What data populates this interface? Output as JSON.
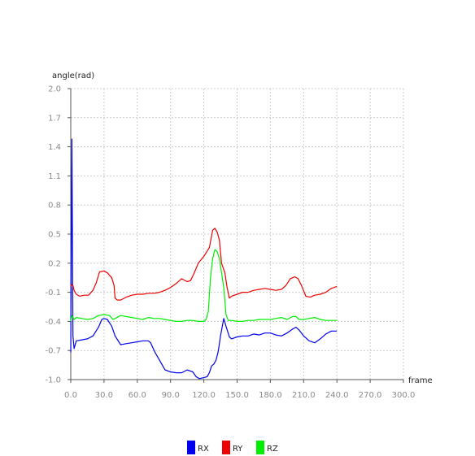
{
  "chart_data": {
    "type": "line",
    "xlabel": "frame",
    "ylabel": "angle(rad)",
    "xlim": [
      0,
      300
    ],
    "ylim": [
      -1.0,
      2.0
    ],
    "xticks": [
      0,
      30,
      60,
      90,
      120,
      150,
      180,
      210,
      240,
      270,
      300
    ],
    "yticks": [
      -1.0,
      -0.7,
      -0.4,
      -0.1,
      0.2,
      0.5,
      0.8,
      1.1,
      1.4,
      1.7,
      2.0
    ],
    "x_tick_labels": [
      "0.0",
      "30.0",
      "60.0",
      "90.0",
      "120.0",
      "150.0",
      "180.0",
      "210.0",
      "240.0",
      "270.0",
      "300.0"
    ],
    "y_tick_labels": [
      "-1.0",
      "-0.7",
      "-0.4",
      "-0.1",
      "0.2",
      "0.5",
      "0.8",
      "1.1",
      "1.4",
      "1.7",
      "2.0"
    ],
    "grid": true,
    "legend_position": "bottom",
    "series": [
      {
        "name": "RX",
        "color": "#0000ee",
        "points": [
          [
            0,
            -0.72
          ],
          [
            1,
            1.48
          ],
          [
            2,
            -0.55
          ],
          [
            3,
            -0.68
          ],
          [
            5,
            -0.6
          ],
          [
            10,
            -0.59
          ],
          [
            15,
            -0.58
          ],
          [
            20,
            -0.55
          ],
          [
            25,
            -0.46
          ],
          [
            28,
            -0.38
          ],
          [
            30,
            -0.37
          ],
          [
            33,
            -0.38
          ],
          [
            37,
            -0.45
          ],
          [
            40,
            -0.55
          ],
          [
            45,
            -0.64
          ],
          [
            50,
            -0.63
          ],
          [
            55,
            -0.62
          ],
          [
            60,
            -0.61
          ],
          [
            65,
            -0.6
          ],
          [
            70,
            -0.6
          ],
          [
            72,
            -0.62
          ],
          [
            76,
            -0.72
          ],
          [
            80,
            -0.8
          ],
          [
            85,
            -0.9
          ],
          [
            90,
            -0.92
          ],
          [
            95,
            -0.93
          ],
          [
            100,
            -0.93
          ],
          [
            105,
            -0.9
          ],
          [
            110,
            -0.92
          ],
          [
            113,
            -0.97
          ],
          [
            116,
            -0.99
          ],
          [
            120,
            -0.98
          ],
          [
            123,
            -0.97
          ],
          [
            125,
            -0.93
          ],
          [
            127,
            -0.86
          ],
          [
            129,
            -0.84
          ],
          [
            131,
            -0.8
          ],
          [
            133,
            -0.71
          ],
          [
            135,
            -0.55
          ],
          [
            138,
            -0.37
          ],
          [
            140,
            -0.45
          ],
          [
            143,
            -0.56
          ],
          [
            145,
            -0.58
          ],
          [
            150,
            -0.56
          ],
          [
            155,
            -0.55
          ],
          [
            160,
            -0.55
          ],
          [
            165,
            -0.53
          ],
          [
            170,
            -0.54
          ],
          [
            175,
            -0.52
          ],
          [
            180,
            -0.52
          ],
          [
            185,
            -0.54
          ],
          [
            190,
            -0.55
          ],
          [
            195,
            -0.52
          ],
          [
            200,
            -0.48
          ],
          [
            203,
            -0.46
          ],
          [
            206,
            -0.49
          ],
          [
            210,
            -0.55
          ],
          [
            215,
            -0.6
          ],
          [
            220,
            -0.62
          ],
          [
            225,
            -0.58
          ],
          [
            230,
            -0.53
          ],
          [
            235,
            -0.5
          ],
          [
            240,
            -0.5
          ]
        ]
      },
      {
        "name": "RY",
        "color": "#ee0000",
        "points": [
          [
            0,
            -0.04
          ],
          [
            1,
            -0.02
          ],
          [
            2,
            -0.03
          ],
          [
            3,
            -0.08
          ],
          [
            5,
            -0.12
          ],
          [
            8,
            -0.14
          ],
          [
            12,
            -0.13
          ],
          [
            16,
            -0.13
          ],
          [
            20,
            -0.08
          ],
          [
            23,
            0.0
          ],
          [
            26,
            0.11
          ],
          [
            30,
            0.12
          ],
          [
            33,
            0.1
          ],
          [
            37,
            0.05
          ],
          [
            39,
            -0.03
          ],
          [
            40,
            -0.16
          ],
          [
            42,
            -0.18
          ],
          [
            45,
            -0.18
          ],
          [
            50,
            -0.15
          ],
          [
            55,
            -0.13
          ],
          [
            60,
            -0.12
          ],
          [
            65,
            -0.12
          ],
          [
            70,
            -0.11
          ],
          [
            75,
            -0.11
          ],
          [
            80,
            -0.1
          ],
          [
            85,
            -0.08
          ],
          [
            90,
            -0.05
          ],
          [
            95,
            -0.01
          ],
          [
            100,
            0.04
          ],
          [
            105,
            0.01
          ],
          [
            108,
            0.02
          ],
          [
            111,
            0.09
          ],
          [
            115,
            0.2
          ],
          [
            120,
            0.27
          ],
          [
            125,
            0.36
          ],
          [
            128,
            0.54
          ],
          [
            130,
            0.56
          ],
          [
            132,
            0.52
          ],
          [
            134,
            0.44
          ],
          [
            136,
            0.2
          ],
          [
            139,
            0.1
          ],
          [
            141,
            -0.05
          ],
          [
            143,
            -0.16
          ],
          [
            145,
            -0.14
          ],
          [
            150,
            -0.12
          ],
          [
            155,
            -0.1
          ],
          [
            160,
            -0.1
          ],
          [
            165,
            -0.08
          ],
          [
            170,
            -0.07
          ],
          [
            175,
            -0.06
          ],
          [
            180,
            -0.07
          ],
          [
            185,
            -0.08
          ],
          [
            190,
            -0.07
          ],
          [
            194,
            -0.03
          ],
          [
            198,
            0.04
          ],
          [
            202,
            0.06
          ],
          [
            205,
            0.04
          ],
          [
            208,
            -0.03
          ],
          [
            212,
            -0.14
          ],
          [
            216,
            -0.15
          ],
          [
            220,
            -0.13
          ],
          [
            225,
            -0.12
          ],
          [
            230,
            -0.1
          ],
          [
            235,
            -0.06
          ],
          [
            240,
            -0.04
          ]
        ]
      },
      {
        "name": "RZ",
        "color": "#00ee00",
        "points": [
          [
            0,
            -0.4
          ],
          [
            1,
            -0.34
          ],
          [
            3,
            -0.38
          ],
          [
            5,
            -0.36
          ],
          [
            10,
            -0.37
          ],
          [
            15,
            -0.38
          ],
          [
            20,
            -0.37
          ],
          [
            25,
            -0.34
          ],
          [
            30,
            -0.33
          ],
          [
            35,
            -0.34
          ],
          [
            38,
            -0.38
          ],
          [
            40,
            -0.37
          ],
          [
            45,
            -0.34
          ],
          [
            50,
            -0.35
          ],
          [
            55,
            -0.36
          ],
          [
            60,
            -0.37
          ],
          [
            65,
            -0.38
          ],
          [
            70,
            -0.36
          ],
          [
            75,
            -0.37
          ],
          [
            80,
            -0.37
          ],
          [
            85,
            -0.38
          ],
          [
            90,
            -0.39
          ],
          [
            95,
            -0.4
          ],
          [
            100,
            -0.4
          ],
          [
            105,
            -0.39
          ],
          [
            110,
            -0.39
          ],
          [
            115,
            -0.4
          ],
          [
            120,
            -0.4
          ],
          [
            122,
            -0.38
          ],
          [
            124,
            -0.3
          ],
          [
            126,
            0.05
          ],
          [
            128,
            0.25
          ],
          [
            130,
            0.34
          ],
          [
            132,
            0.32
          ],
          [
            134,
            0.25
          ],
          [
            136,
            0.1
          ],
          [
            138,
            -0.05
          ],
          [
            140,
            -0.33
          ],
          [
            142,
            -0.39
          ],
          [
            145,
            -0.39
          ],
          [
            150,
            -0.4
          ],
          [
            155,
            -0.4
          ],
          [
            160,
            -0.39
          ],
          [
            165,
            -0.39
          ],
          [
            170,
            -0.38
          ],
          [
            175,
            -0.38
          ],
          [
            180,
            -0.38
          ],
          [
            185,
            -0.37
          ],
          [
            190,
            -0.36
          ],
          [
            195,
            -0.38
          ],
          [
            200,
            -0.35
          ],
          [
            203,
            -0.35
          ],
          [
            206,
            -0.38
          ],
          [
            210,
            -0.38
          ],
          [
            215,
            -0.37
          ],
          [
            220,
            -0.36
          ],
          [
            225,
            -0.38
          ],
          [
            230,
            -0.39
          ],
          [
            235,
            -0.39
          ],
          [
            240,
            -0.39
          ]
        ]
      }
    ]
  }
}
